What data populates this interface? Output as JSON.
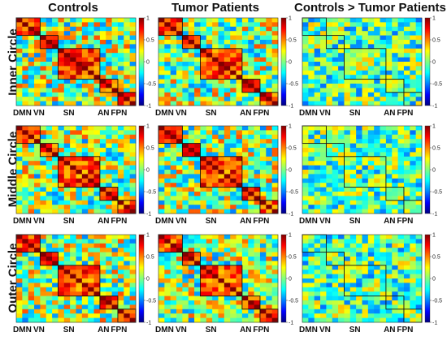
{
  "column_titles": [
    "Controls",
    "Tumor Patients",
    "Controls > Tumor Patients"
  ],
  "row_titles": [
    "Inner Circle",
    "Middle Circle",
    "Outer Circle"
  ],
  "network_labels": [
    "DMN",
    "VN",
    "SN",
    "AN",
    "FPN"
  ],
  "colorbar": {
    "ticks": [
      1,
      0.5,
      0,
      -0.5,
      -1
    ],
    "tick_labels": [
      "1",
      "0.5",
      "0",
      "-0.5",
      "-1"
    ],
    "colormap": "jet",
    "range": [
      -1,
      1
    ]
  },
  "chart_data": [
    {
      "type": "heatmap",
      "row": "Inner Circle",
      "column": "Controls",
      "networks": [
        "DMN",
        "VN",
        "SN",
        "AN",
        "FPN"
      ],
      "network_block_sizes": [
        4,
        3,
        7,
        3,
        3
      ],
      "value_range": [
        -1,
        1
      ],
      "colormap": "jet"
    },
    {
      "type": "heatmap",
      "row": "Inner Circle",
      "column": "Tumor Patients",
      "networks": [
        "DMN",
        "VN",
        "SN",
        "AN",
        "FPN"
      ],
      "network_block_sizes": [
        4,
        3,
        7,
        3,
        3
      ],
      "value_range": [
        -1,
        1
      ],
      "colormap": "jet"
    },
    {
      "type": "heatmap",
      "row": "Inner Circle",
      "column": "Controls > Tumor Patients",
      "networks": [
        "DMN",
        "VN",
        "SN",
        "AN",
        "FPN"
      ],
      "network_block_sizes": [
        4,
        3,
        7,
        3,
        3
      ],
      "value_range": [
        -1,
        1
      ],
      "colormap": "jet"
    },
    {
      "type": "heatmap",
      "row": "Middle Circle",
      "column": "Controls",
      "networks": [
        "DMN",
        "VN",
        "SN",
        "AN",
        "FPN"
      ],
      "network_block_sizes": [
        4,
        3,
        7,
        3,
        3
      ],
      "value_range": [
        -1,
        1
      ],
      "colormap": "jet"
    },
    {
      "type": "heatmap",
      "row": "Middle Circle",
      "column": "Tumor Patients",
      "networks": [
        "DMN",
        "VN",
        "SN",
        "AN",
        "FPN"
      ],
      "network_block_sizes": [
        4,
        3,
        7,
        3,
        3
      ],
      "value_range": [
        -1,
        1
      ],
      "colormap": "jet"
    },
    {
      "type": "heatmap",
      "row": "Middle Circle",
      "column": "Controls > Tumor Patients",
      "networks": [
        "DMN",
        "VN",
        "SN",
        "AN",
        "FPN"
      ],
      "network_block_sizes": [
        4,
        3,
        7,
        3,
        3
      ],
      "value_range": [
        -1,
        1
      ],
      "colormap": "jet"
    },
    {
      "type": "heatmap",
      "row": "Outer Circle",
      "column": "Controls",
      "networks": [
        "DMN",
        "VN",
        "SN",
        "AN",
        "FPN"
      ],
      "network_block_sizes": [
        4,
        3,
        7,
        3,
        3
      ],
      "value_range": [
        -1,
        1
      ],
      "colormap": "jet"
    },
    {
      "type": "heatmap",
      "row": "Outer Circle",
      "column": "Tumor Patients",
      "networks": [
        "DMN",
        "VN",
        "SN",
        "AN",
        "FPN"
      ],
      "network_block_sizes": [
        4,
        3,
        7,
        3,
        3
      ],
      "value_range": [
        -1,
        1
      ],
      "colormap": "jet"
    },
    {
      "type": "heatmap",
      "row": "Outer Circle",
      "column": "Controls > Tumor Patients",
      "networks": [
        "DMN",
        "VN",
        "SN",
        "AN",
        "FPN"
      ],
      "network_block_sizes": [
        4,
        3,
        7,
        3,
        3
      ],
      "value_range": [
        -1,
        1
      ],
      "colormap": "jet"
    }
  ]
}
